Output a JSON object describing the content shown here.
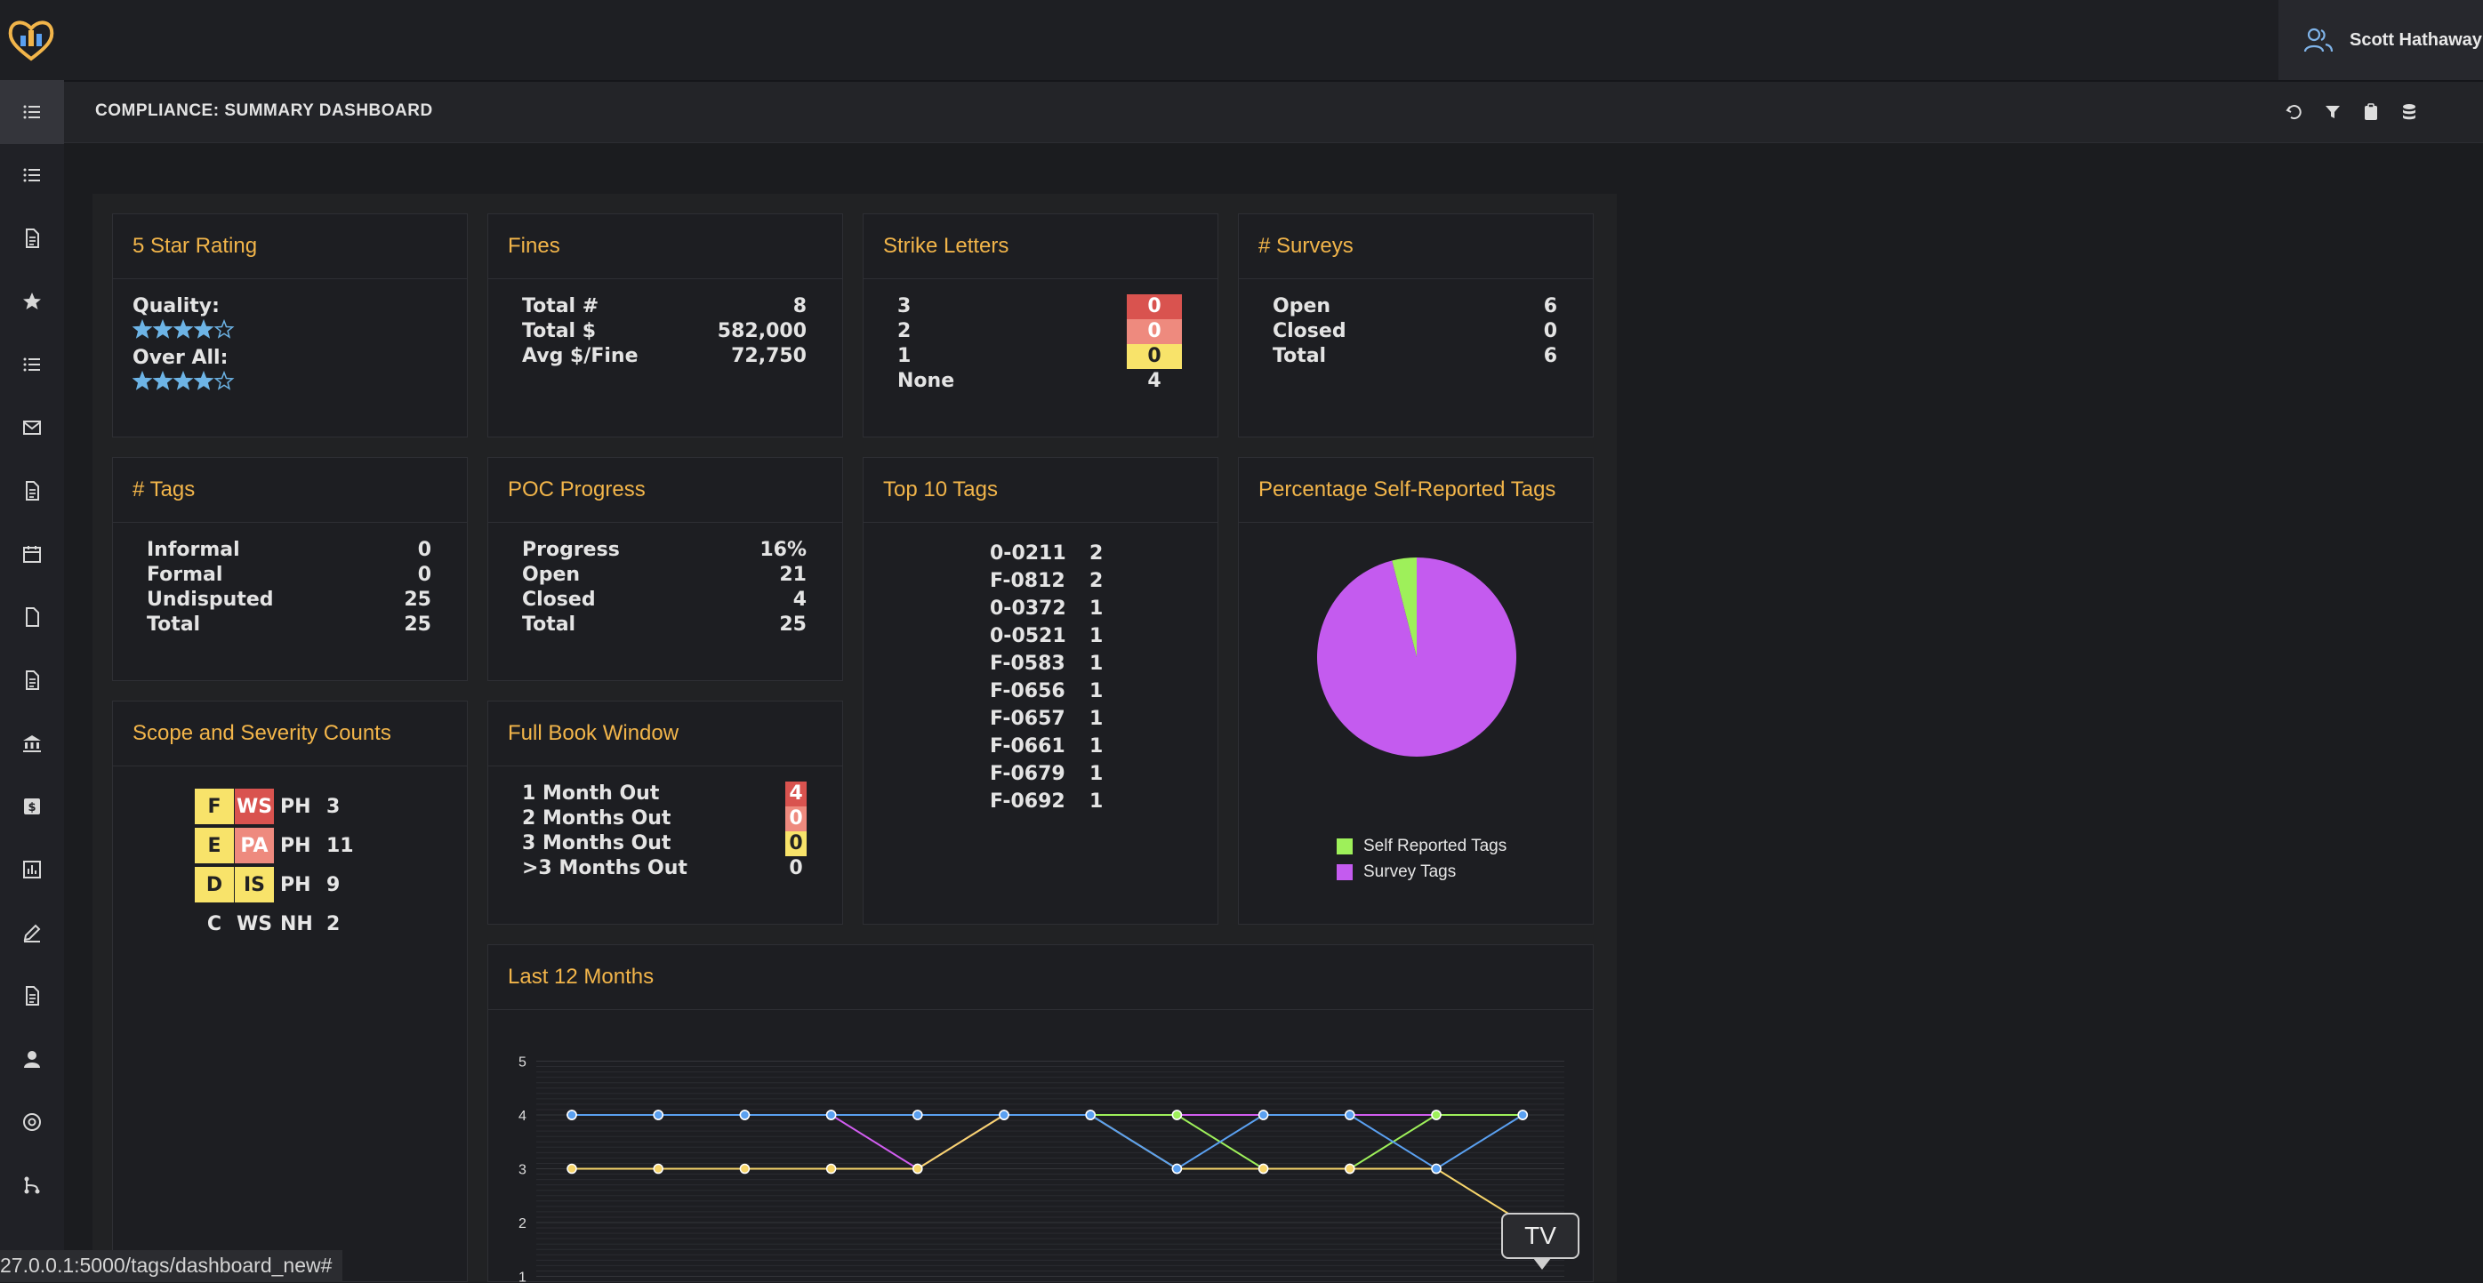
{
  "app": {
    "user_name": "Scott Hathaway",
    "page_title": "COMPLIANCE: SUMMARY DASHBOARD",
    "status_url": "27.0.0.1:5000/tags/dashboard_new#"
  },
  "sidebar_icons": [
    "list-icon",
    "checklist-icon",
    "copy-icon",
    "star-icon",
    "list-ordered-icon",
    "mail-icon",
    "contact-icon",
    "calendar-icon",
    "file-icon",
    "document-icon",
    "bank-icon",
    "dollar-icon",
    "bar-chart-icon",
    "edit-icon",
    "building-icon",
    "user-icon",
    "at-icon",
    "flow-icon"
  ],
  "toolbar_icons": [
    "undo-icon",
    "filter-icon",
    "clipboard-icon",
    "database-icon"
  ],
  "star_rating": {
    "title": "5 Star Rating",
    "quality_label": "Quality:",
    "quality_stars": 4,
    "overall_label": "Over All:",
    "overall_stars": 4,
    "max_stars": 5
  },
  "fines": {
    "title": "Fines",
    "rows": [
      {
        "label": "Total #",
        "value": "8"
      },
      {
        "label": "Total $",
        "value": "582,000"
      },
      {
        "label": "Avg $/Fine",
        "value": "72,750"
      }
    ]
  },
  "strike_letters": {
    "title": "Strike Letters",
    "rows": [
      {
        "label": "3",
        "value": "0",
        "style": "b-red"
      },
      {
        "label": "2",
        "value": "0",
        "style": "b-salmon"
      },
      {
        "label": "1",
        "value": "0",
        "style": "b-yellow"
      },
      {
        "label": "None",
        "value": "4",
        "style": ""
      }
    ]
  },
  "surveys": {
    "title": "# Surveys",
    "rows": [
      {
        "label": "Open",
        "value": "6"
      },
      {
        "label": "Closed",
        "value": "0"
      },
      {
        "label": "Total",
        "value": "6"
      }
    ]
  },
  "tags": {
    "title": "# Tags",
    "rows": [
      {
        "label": "Informal",
        "value": "0"
      },
      {
        "label": "Formal",
        "value": "0"
      },
      {
        "label": "Undisputed",
        "value": "25"
      },
      {
        "label": "Total",
        "value": "25"
      }
    ]
  },
  "poc": {
    "title": "POC Progress",
    "rows": [
      {
        "label": "Progress",
        "value": "16%"
      },
      {
        "label": "Open",
        "value": "21"
      },
      {
        "label": "Closed",
        "value": "4"
      },
      {
        "label": "Total",
        "value": "25"
      }
    ]
  },
  "top10": {
    "title": "Top 10 Tags",
    "rows": [
      {
        "code": "0-0211",
        "count": "2"
      },
      {
        "code": "F-0812",
        "count": "2"
      },
      {
        "code": "0-0372",
        "count": "1"
      },
      {
        "code": "0-0521",
        "count": "1"
      },
      {
        "code": "F-0583",
        "count": "1"
      },
      {
        "code": "F-0656",
        "count": "1"
      },
      {
        "code": "F-0657",
        "count": "1"
      },
      {
        "code": "F-0661",
        "count": "1"
      },
      {
        "code": "F-0679",
        "count": "1"
      },
      {
        "code": "F-0692",
        "count": "1"
      }
    ]
  },
  "self_reported": {
    "title": "Percentage Self-Reported Tags",
    "chart_data": {
      "type": "pie",
      "slices": [
        {
          "name": "Self Reported Tags",
          "value": 1,
          "color": "#9ef05a"
        },
        {
          "name": "Survey Tags",
          "value": 24,
          "color": "#c45bef"
        }
      ]
    }
  },
  "scope_severity": {
    "title": "Scope and Severity Counts",
    "rows": [
      {
        "scope": "F",
        "sev": "WS",
        "harm": "PH",
        "count": "3",
        "scope_style": "b-yellow",
        "sev_style": "b-red"
      },
      {
        "scope": "E",
        "sev": "PA",
        "harm": "PH",
        "count": "11",
        "scope_style": "b-yellow",
        "sev_style": "b-salmon"
      },
      {
        "scope": "D",
        "sev": "IS",
        "harm": "PH",
        "count": "9",
        "scope_style": "b-yellow",
        "sev_style": "b-yellow"
      },
      {
        "scope": "C",
        "sev": "WS",
        "harm": "NH",
        "count": "2",
        "scope_style": "",
        "sev_style": ""
      }
    ]
  },
  "full_book": {
    "title": "Full Book Window",
    "rows": [
      {
        "label": "1 Month Out",
        "value": "4",
        "style": "b-red"
      },
      {
        "label": "2 Months Out",
        "value": "0",
        "style": "b-salmon"
      },
      {
        "label": "3 Months Out",
        "value": "0",
        "style": "b-yellow"
      },
      {
        "label": ">3 Months Out",
        "value": "0",
        "style": ""
      }
    ]
  },
  "last12": {
    "title": "Last 12 Months",
    "tooltip": "TV",
    "chart_data": {
      "type": "line",
      "ylim": [
        1,
        5
      ],
      "yticks": [
        1,
        2,
        3,
        4,
        5
      ],
      "grid": true,
      "x_points": 12,
      "series": [
        {
          "color": "#d15df0",
          "values": [
            4,
            4,
            4,
            4,
            3,
            4,
            4,
            4,
            4,
            4,
            4,
            4
          ]
        },
        {
          "color": "#9ef05a",
          "values": [
            4,
            4,
            4,
            4,
            4,
            4,
            4,
            4,
            3,
            3,
            4,
            4
          ]
        },
        {
          "color": "#f7d56b",
          "values": [
            3,
            3,
            3,
            3,
            3,
            4,
            4,
            3,
            3,
            3,
            3,
            2
          ]
        },
        {
          "color": "#5aa0f0",
          "values": [
            4,
            4,
            4,
            4,
            4,
            4,
            4,
            3,
            4,
            4,
            3,
            4
          ]
        }
      ]
    }
  }
}
